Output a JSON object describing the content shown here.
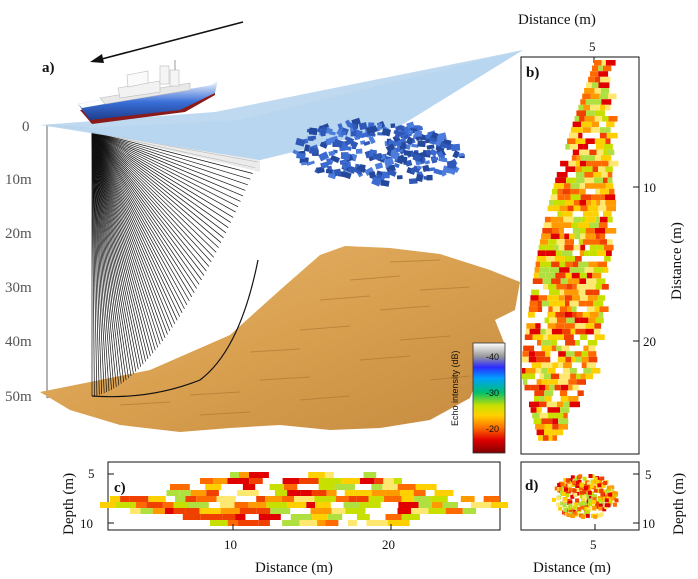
{
  "panel_a": {
    "label": "a)",
    "depth_ticks": [
      "0",
      "10m",
      "20m",
      "30m",
      "40m",
      "50m"
    ],
    "colorbar": {
      "title": "Echo intensity (dB)",
      "ticks": [
        "-40",
        "-30",
        "-20"
      ],
      "colors": [
        "#ffffff",
        "#9a9a9a",
        "#2b2bff",
        "#00a0ff",
        "#00c070",
        "#c8e000",
        "#ffd000",
        "#ff7a00",
        "#e00000",
        "#800000"
      ]
    }
  },
  "panel_b": {
    "label": "b)",
    "top_axis_title": "Distance (m)",
    "top_ticks": [
      "5"
    ],
    "right_axis_title": "Distance (m)",
    "right_ticks": [
      "10",
      "20"
    ]
  },
  "panel_c": {
    "label": "c)",
    "y_axis_title": "Depth (m)",
    "y_ticks": [
      "5",
      "10"
    ],
    "x_axis_title": "Distance (m)",
    "x_ticks": [
      "10",
      "20"
    ]
  },
  "panel_d": {
    "label": "d)",
    "y_axis_title": "Depth (m)",
    "y_ticks": [
      "5",
      "10"
    ],
    "x_axis_title": "Distance (m)",
    "x_ticks": [
      "5"
    ]
  }
}
